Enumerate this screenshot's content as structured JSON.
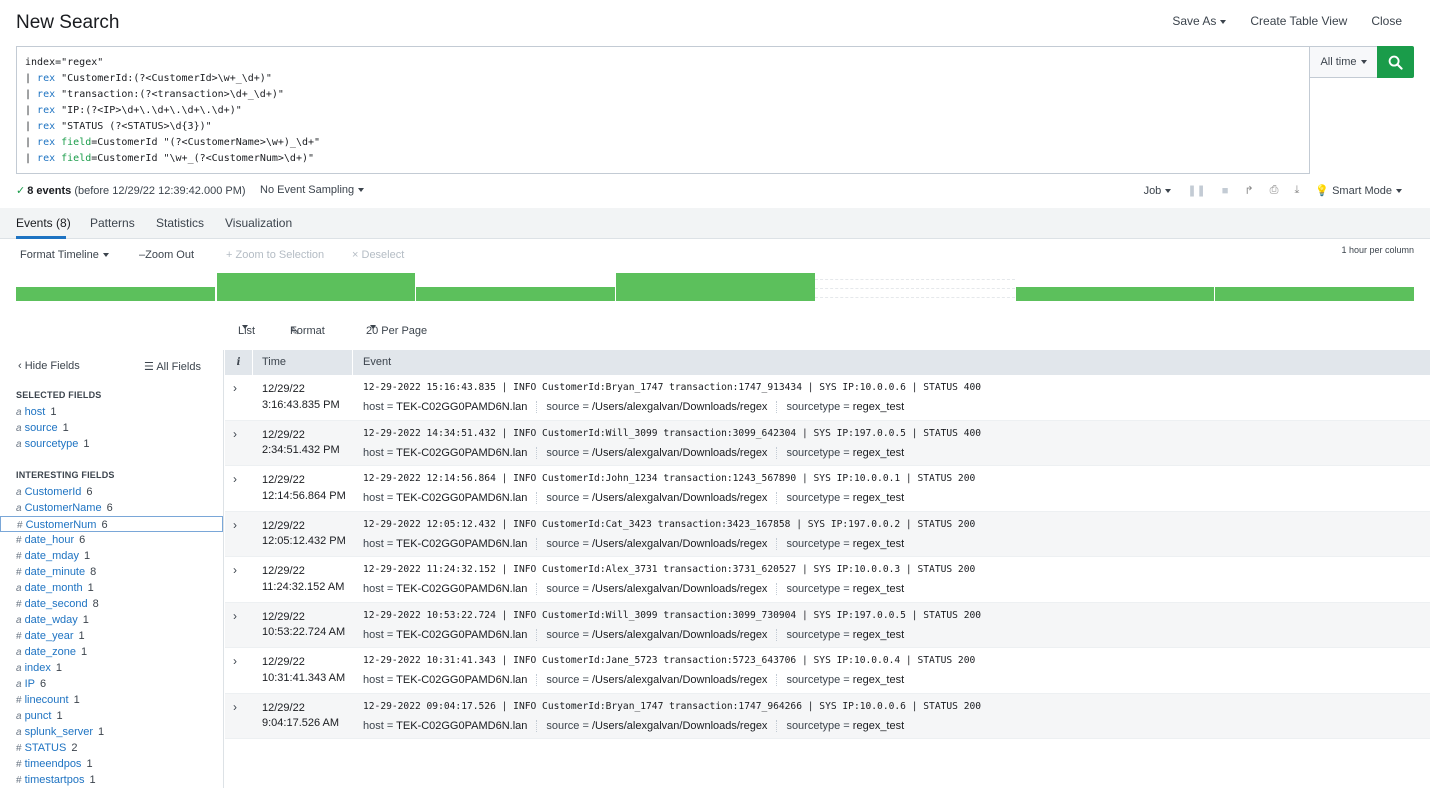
{
  "header": {
    "title": "New Search",
    "save_as": "Save As",
    "create_table_view": "Create Table View",
    "close": "Close"
  },
  "search": {
    "query_lines": [
      {
        "parts": [
          {
            "t": "index=\"regex\"",
            "c": ""
          }
        ]
      },
      {
        "parts": [
          {
            "t": "| ",
            "c": ""
          },
          {
            "t": "rex",
            "c": "kw"
          },
          {
            "t": " \"CustomerId:(?<CustomerId>\\w+_\\d+)\"",
            "c": ""
          }
        ]
      },
      {
        "parts": [
          {
            "t": "| ",
            "c": ""
          },
          {
            "t": "rex",
            "c": "kw"
          },
          {
            "t": " \"transaction:(?<transaction>\\d+_\\d+)\"",
            "c": ""
          }
        ]
      },
      {
        "parts": [
          {
            "t": "| ",
            "c": ""
          },
          {
            "t": "rex",
            "c": "kw"
          },
          {
            "t": " \"IP:(?<IP>\\d+\\.\\d+\\.\\d+\\.\\d+)\"",
            "c": ""
          }
        ]
      },
      {
        "parts": [
          {
            "t": "| ",
            "c": ""
          },
          {
            "t": "rex",
            "c": "kw"
          },
          {
            "t": " \"STATUS (?<STATUS>\\d{3})\"",
            "c": ""
          }
        ]
      },
      {
        "parts": [
          {
            "t": "| ",
            "c": ""
          },
          {
            "t": "rex",
            "c": "kw"
          },
          {
            "t": " ",
            "c": ""
          },
          {
            "t": "field",
            "c": "fld"
          },
          {
            "t": "=CustomerId \"(?<CustomerName>\\w+)_\\d+\"",
            "c": ""
          }
        ]
      },
      {
        "parts": [
          {
            "t": "| ",
            "c": ""
          },
          {
            "t": "rex",
            "c": "kw"
          },
          {
            "t": " ",
            "c": ""
          },
          {
            "t": "field",
            "c": "fld"
          },
          {
            "t": "=CustomerId \"\\w+_(?<CustomerNum>\\d+)\"",
            "c": ""
          }
        ]
      }
    ],
    "time_range": "All time"
  },
  "status": {
    "events_count": "8 events",
    "before_text": "(before 12/29/22 12:39:42.000 PM)",
    "sampling": "No Event Sampling",
    "job": "Job",
    "mode": "Smart Mode"
  },
  "tabs": [
    "Events (8)",
    "Patterns",
    "Statistics",
    "Visualization"
  ],
  "timeline": {
    "format": "Format Timeline",
    "zoom_out": "Zoom Out",
    "zoom_selection": "Zoom to Selection",
    "deselect": "Deselect",
    "scale": "1 hour per column",
    "columns": [
      1,
      2,
      1,
      2,
      0,
      1,
      1
    ]
  },
  "results": {
    "list": "List",
    "format": "Format",
    "per_page": "20 Per Page"
  },
  "sidebar": {
    "hide_fields": "Hide Fields",
    "all_fields": "All Fields",
    "selected_heading": "SELECTED FIELDS",
    "interesting_heading": "INTERESTING FIELDS",
    "selected_fields": [
      {
        "type": "a",
        "name": "host",
        "count": "1"
      },
      {
        "type": "a",
        "name": "source",
        "count": "1"
      },
      {
        "type": "a",
        "name": "sourcetype",
        "count": "1"
      }
    ],
    "interesting_fields": [
      {
        "type": "a",
        "name": "CustomerId",
        "count": "6"
      },
      {
        "type": "a",
        "name": "CustomerName",
        "count": "6"
      },
      {
        "type": "#",
        "name": "CustomerNum",
        "count": "6"
      },
      {
        "type": "#",
        "name": "date_hour",
        "count": "6"
      },
      {
        "type": "#",
        "name": "date_mday",
        "count": "1"
      },
      {
        "type": "#",
        "name": "date_minute",
        "count": "8"
      },
      {
        "type": "a",
        "name": "date_month",
        "count": "1"
      },
      {
        "type": "#",
        "name": "date_second",
        "count": "8"
      },
      {
        "type": "a",
        "name": "date_wday",
        "count": "1"
      },
      {
        "type": "#",
        "name": "date_year",
        "count": "1"
      },
      {
        "type": "a",
        "name": "date_zone",
        "count": "1"
      },
      {
        "type": "a",
        "name": "index",
        "count": "1"
      },
      {
        "type": "a",
        "name": "IP",
        "count": "6"
      },
      {
        "type": "#",
        "name": "linecount",
        "count": "1"
      },
      {
        "type": "a",
        "name": "punct",
        "count": "1"
      },
      {
        "type": "a",
        "name": "splunk_server",
        "count": "1"
      },
      {
        "type": "#",
        "name": "STATUS",
        "count": "2"
      },
      {
        "type": "#",
        "name": "timeendpos",
        "count": "1"
      },
      {
        "type": "#",
        "name": "timestartpos",
        "count": "1"
      }
    ]
  },
  "table": {
    "col_info": "i",
    "col_time": "Time",
    "col_event": "Event",
    "meta_labels": {
      "host": "host",
      "source": "source",
      "sourcetype": "sourcetype"
    },
    "events": [
      {
        "date": "12/29/22",
        "time": "3:16:43.835 PM",
        "raw": "12-29-2022 15:16:43.835 | INFO CustomerId:Bryan_1747 transaction:1747_913434 | SYS IP:10.0.0.6 | STATUS 400",
        "host": "TEK-C02GG0PAMD6N.lan",
        "source": "/Users/alexgalvan/Downloads/regex",
        "sourcetype": "regex_test"
      },
      {
        "date": "12/29/22",
        "time": "2:34:51.432 PM",
        "raw": "12-29-2022 14:34:51.432 | INFO CustomerId:Will_3099 transaction:3099_642304 | SYS IP:197.0.0.5 | STATUS 400",
        "host": "TEK-C02GG0PAMD6N.lan",
        "source": "/Users/alexgalvan/Downloads/regex",
        "sourcetype": "regex_test"
      },
      {
        "date": "12/29/22",
        "time": "12:14:56.864 PM",
        "raw": "12-29-2022 12:14:56.864 | INFO CustomerId:John_1234 transaction:1243_567890 | SYS IP:10.0.0.1 | STATUS 200",
        "host": "TEK-C02GG0PAMD6N.lan",
        "source": "/Users/alexgalvan/Downloads/regex",
        "sourcetype": "regex_test"
      },
      {
        "date": "12/29/22",
        "time": "12:05:12.432 PM",
        "raw": "12-29-2022 12:05:12.432 | INFO CustomerId:Cat_3423 transaction:3423_167858 | SYS IP:197.0.0.2 | STATUS 200",
        "host": "TEK-C02GG0PAMD6N.lan",
        "source": "/Users/alexgalvan/Downloads/regex",
        "sourcetype": "regex_test"
      },
      {
        "date": "12/29/22",
        "time": "11:24:32.152 AM",
        "raw": "12-29-2022 11:24:32.152 | INFO CustomerId:Alex_3731 transaction:3731_620527 | SYS IP:10.0.0.3 | STATUS 200",
        "host": "TEK-C02GG0PAMD6N.lan",
        "source": "/Users/alexgalvan/Downloads/regex",
        "sourcetype": "regex_test"
      },
      {
        "date": "12/29/22",
        "time": "10:53:22.724 AM",
        "raw": "12-29-2022 10:53:22.724 | INFO CustomerId:Will_3099 transaction:3099_730904 | SYS IP:197.0.0.5 | STATUS 200",
        "host": "TEK-C02GG0PAMD6N.lan",
        "source": "/Users/alexgalvan/Downloads/regex",
        "sourcetype": "regex_test"
      },
      {
        "date": "12/29/22",
        "time": "10:31:41.343 AM",
        "raw": "12-29-2022 10:31:41.343 | INFO CustomerId:Jane_5723 transaction:5723_643706 | SYS IP:10.0.0.4 | STATUS 200",
        "host": "TEK-C02GG0PAMD6N.lan",
        "source": "/Users/alexgalvan/Downloads/regex",
        "sourcetype": "regex_test"
      },
      {
        "date": "12/29/22",
        "time": "9:04:17.526 AM",
        "raw": "12-29-2022 09:04:17.526 | INFO CustomerId:Bryan_1747 transaction:1747_964266 | SYS IP:10.0.0.6 | STATUS 200",
        "host": "TEK-C02GG0PAMD6N.lan",
        "source": "/Users/alexgalvan/Downloads/regex",
        "sourcetype": "regex_test"
      }
    ]
  },
  "colors": {
    "accent_green": "#1a9c4a",
    "link_blue": "#1e73c2",
    "timeline_green": "#5cc05c"
  }
}
